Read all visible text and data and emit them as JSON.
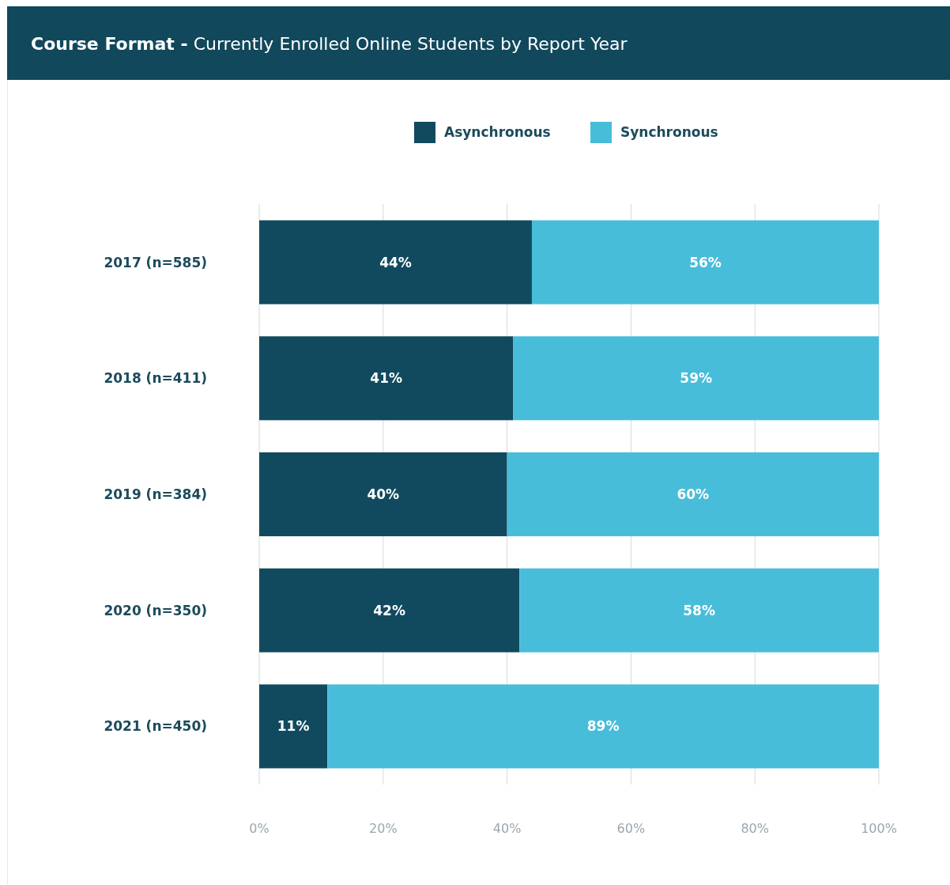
{
  "chart_data": {
    "type": "bar",
    "orientation": "horizontal",
    "stacked": true,
    "title": "Course Format -",
    "subtitle": "Currently Enrolled Online Students by Report Year",
    "categories": [
      "2017 (n=585)",
      "2018 (n=411)",
      "2019 (n=384)",
      "2020 (n=350)",
      "2021 (n=450)"
    ],
    "series": [
      {
        "name": "Asynchronous",
        "color": "#114a5e",
        "values": [
          44,
          41,
          40,
          42,
          11
        ],
        "value_labels": [
          "44%",
          "41%",
          "40%",
          "42%",
          "11%"
        ]
      },
      {
        "name": "Synchronous",
        "color": "#48bdd9",
        "values": [
          56,
          59,
          60,
          58,
          89
        ],
        "value_labels": [
          "56%",
          "59%",
          "60%",
          "58%",
          "89%"
        ]
      }
    ],
    "xlim": [
      0,
      100
    ],
    "xticks": [
      {
        "value": 0,
        "label": "0%"
      },
      {
        "value": 20,
        "label": "20%"
      },
      {
        "value": 40,
        "label": "40%"
      },
      {
        "value": 60,
        "label": "60%"
      },
      {
        "value": 80,
        "label": "80%"
      },
      {
        "value": 100,
        "label": "100%"
      }
    ],
    "grid": "x",
    "legend": "top"
  }
}
